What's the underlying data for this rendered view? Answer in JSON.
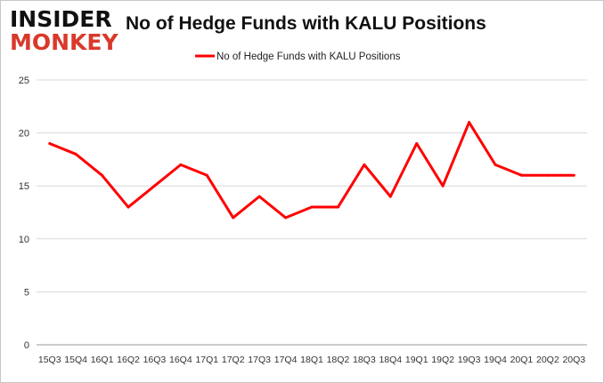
{
  "logo": {
    "line1": "INSIDER",
    "line2": "MONKEY"
  },
  "chart_data": {
    "type": "line",
    "title": "No of Hedge Funds with KALU Positions",
    "xlabel": "",
    "ylabel": "",
    "categories": [
      "15Q3",
      "15Q4",
      "16Q1",
      "16Q2",
      "16Q3",
      "16Q4",
      "17Q1",
      "17Q2",
      "17Q3",
      "17Q4",
      "18Q1",
      "18Q2",
      "18Q3",
      "18Q4",
      "19Q1",
      "19Q2",
      "19Q3",
      "19Q4",
      "20Q1",
      "20Q2",
      "20Q3"
    ],
    "series": [
      {
        "name": "No of Hedge Funds with KALU Positions",
        "color": "#ff0000",
        "values": [
          19,
          18,
          16,
          13,
          15,
          17,
          16,
          12,
          14,
          12,
          13,
          13,
          17,
          14,
          19,
          15,
          21,
          17,
          16,
          16,
          16
        ]
      }
    ],
    "ylim": [
      0,
      25
    ],
    "yticks": [
      0,
      5,
      10,
      15,
      20,
      25
    ],
    "grid": true,
    "legend": "top-center"
  }
}
